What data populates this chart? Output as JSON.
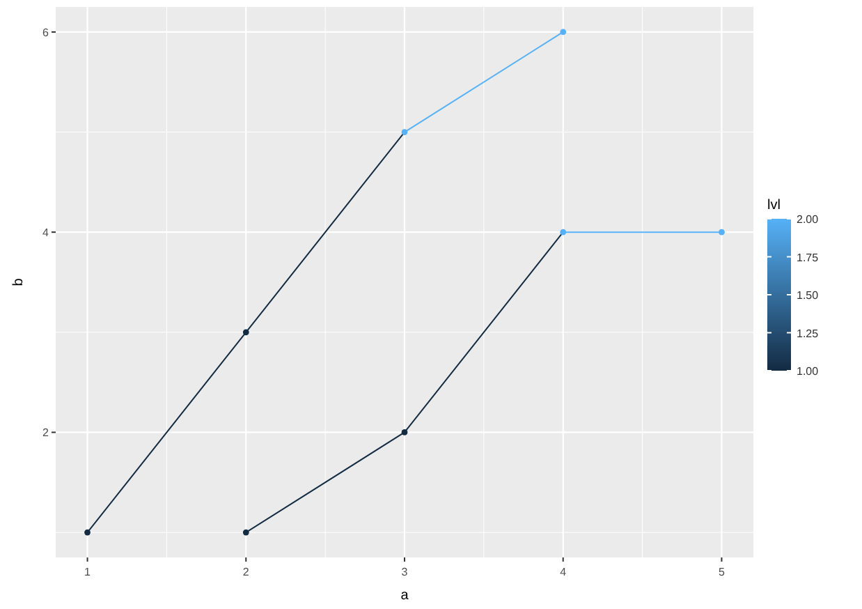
{
  "chart_data": {
    "type": "line",
    "xlabel": "a",
    "ylabel": "b",
    "clabel": "lvl",
    "xlim": [
      0.8,
      5.2
    ],
    "ylim": [
      0.75,
      6.25
    ],
    "xticks": [
      1,
      2,
      3,
      4,
      5
    ],
    "yticks": [
      2,
      4,
      6
    ],
    "grid": true,
    "clim": [
      1,
      2
    ],
    "cticks": [
      {
        "value": 1,
        "label": "1.00"
      },
      {
        "value": 1.25,
        "label": "1.25"
      },
      {
        "value": 1.5,
        "label": "1.50"
      },
      {
        "value": 1.75,
        "label": "1.75"
      },
      {
        "value": 2,
        "label": "2.00"
      }
    ],
    "series": [
      {
        "x": [
          1,
          2,
          3
        ],
        "values": [
          1,
          3,
          5
        ],
        "color": "#132b43"
      },
      {
        "x": [
          3,
          4
        ],
        "values": [
          5,
          6
        ],
        "color": "#56b1f7"
      },
      {
        "x": [
          2,
          3,
          4
        ],
        "values": [
          1,
          2,
          4
        ],
        "color": "#132b43"
      },
      {
        "x": [
          4,
          5
        ],
        "values": [
          4,
          4
        ],
        "color": "#56b1f7"
      },
      {
        "type": "scatter",
        "x": [
          1,
          2,
          3,
          4,
          2,
          3,
          4,
          5
        ],
        "values": [
          1,
          3,
          5,
          6,
          1,
          2,
          4,
          4
        ],
        "marker": "circle",
        "colors": [
          "#132b43",
          "#132b43",
          "#56b1f7",
          "#56b1f7",
          "#132b43",
          "#132b43",
          "#56b1f7",
          "#56b1f7"
        ]
      }
    ]
  }
}
